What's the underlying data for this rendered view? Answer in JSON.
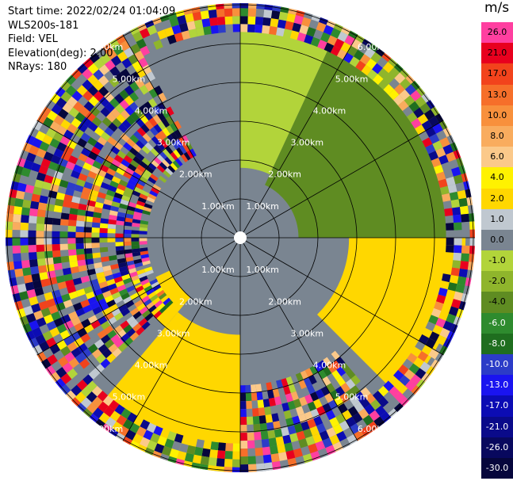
{
  "header": {
    "start_time": "Start time: 2022/02/24 01:04:09",
    "instrument": "WLS200s-181",
    "field": "Field: VEL",
    "elevation": "Elevation(deg): 2.00",
    "nrays": "NRays: 180"
  },
  "colorbar": {
    "unit": "m/s",
    "bins": [
      {
        "label": "26.0",
        "color": "#ff3fa0",
        "text": "#000000"
      },
      {
        "label": "21.0",
        "color": "#e8001e",
        "text": "#000000"
      },
      {
        "label": "17.0",
        "color": "#f2431c",
        "text": "#000000"
      },
      {
        "label": "13.0",
        "color": "#f66f2a",
        "text": "#000000"
      },
      {
        "label": "10.0",
        "color": "#f8903c",
        "text": "#000000"
      },
      {
        "label": "8.0",
        "color": "#f9ac5e",
        "text": "#000000"
      },
      {
        "label": "6.0",
        "color": "#fbc98a",
        "text": "#000000"
      },
      {
        "label": "4.0",
        "color": "#fff200",
        "text": "#000000"
      },
      {
        "label": "2.0",
        "color": "#ffd700",
        "text": "#000000"
      },
      {
        "label": "1.0",
        "color": "#c0c8d0",
        "text": "#000000"
      },
      {
        "label": "0.0",
        "color": "#7a8591",
        "text": "#000000"
      },
      {
        "label": "-1.0",
        "color": "#b2d43a",
        "text": "#000000"
      },
      {
        "label": "-2.0",
        "color": "#8fb52c",
        "text": "#000000"
      },
      {
        "label": "-4.0",
        "color": "#5f8c22",
        "text": "#000000"
      },
      {
        "label": "-6.0",
        "color": "#2e8b2e",
        "text": "#ffffff"
      },
      {
        "label": "-8.0",
        "color": "#1f6e1f",
        "text": "#ffffff"
      },
      {
        "label": "-10.0",
        "color": "#2c3cc8",
        "text": "#ffffff"
      },
      {
        "label": "-13.0",
        "color": "#1a14f0",
        "text": "#ffffff"
      },
      {
        "label": "-17.0",
        "color": "#0c0cb4",
        "text": "#ffffff"
      },
      {
        "label": "-21.0",
        "color": "#0a0a8a",
        "text": "#ffffff"
      },
      {
        "label": "-26.0",
        "color": "#08085e",
        "text": "#ffffff"
      },
      {
        "label": "-30.0",
        "color": "#06063c",
        "text": "#ffffff"
      }
    ]
  },
  "chart_data": {
    "type": "heatmap",
    "title": "",
    "units": "m/s",
    "max_range_km": 6.0,
    "range_rings_km": [
      1.0,
      2.0,
      3.0,
      4.0,
      5.0,
      6.0
    ],
    "ring_labels": [
      "1.00km",
      "2.00km",
      "3.00km",
      "4.00km",
      "5.00km",
      "6.00km"
    ],
    "radials_deg": [
      0,
      30,
      60,
      90,
      120,
      150,
      180,
      210,
      240,
      270,
      300,
      330
    ],
    "sectors": [
      {
        "from_deg": 0,
        "to_deg": 25,
        "inner_km": 1.8,
        "outer_km": 5.5,
        "value": -1.0
      },
      {
        "from_deg": 25,
        "to_deg": 90,
        "inner_km": 1.5,
        "outer_km": 5.3,
        "value": -4.0
      },
      {
        "from_deg": 25,
        "to_deg": 60,
        "inner_km": 5.3,
        "outer_km": 6.1,
        "value": -2.0
      },
      {
        "from_deg": 90,
        "to_deg": 135,
        "inner_km": 2.8,
        "outer_km": 5.8,
        "value": 2.0
      },
      {
        "from_deg": 180,
        "to_deg": 220,
        "inner_km": 2.5,
        "outer_km": 6.2,
        "value": 2.0
      },
      {
        "from_deg": 220,
        "to_deg": 245,
        "inner_km": 2.0,
        "outer_km": 3.0,
        "value": 2.0
      },
      {
        "from_deg": 300,
        "to_deg": 330,
        "inner_km": 2.5,
        "outer_km": 5.7,
        "value": 0.0
      }
    ],
    "near_field_value": 0.0,
    "clutter_beyond_km": 5.3
  }
}
